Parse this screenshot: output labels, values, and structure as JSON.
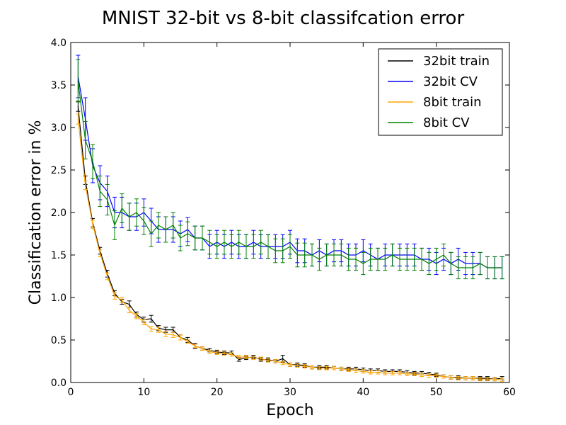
{
  "chart_data": {
    "type": "line",
    "title": "MNIST 32-bit vs 8-bit classifcation error",
    "xlabel": "Epoch",
    "ylabel": "Classification error in %",
    "xlim": [
      0,
      60
    ],
    "ylim": [
      0,
      4.0
    ],
    "x_ticks": [
      "0",
      "10",
      "20",
      "30",
      "40",
      "50",
      "60"
    ],
    "y_ticks": [
      "0.0",
      "0.5",
      "1.0",
      "1.5",
      "2.0",
      "2.5",
      "3.0",
      "3.5",
      "4.0"
    ],
    "grid": false,
    "legend_position": "top-right",
    "x": [
      1,
      2,
      3,
      4,
      5,
      6,
      7,
      8,
      9,
      10,
      11,
      12,
      13,
      14,
      15,
      16,
      17,
      18,
      19,
      20,
      21,
      22,
      23,
      24,
      25,
      26,
      27,
      28,
      29,
      30,
      31,
      32,
      33,
      34,
      35,
      36,
      37,
      38,
      39,
      40,
      41,
      42,
      43,
      44,
      45,
      46,
      47,
      48,
      49,
      50,
      51,
      52,
      53,
      54,
      55,
      56,
      57,
      58,
      59
    ],
    "series": [
      {
        "name": "32bit train",
        "color": "#000000",
        "values": [
          3.25,
          2.38,
          1.88,
          1.55,
          1.28,
          1.05,
          0.95,
          0.92,
          0.8,
          0.74,
          0.75,
          0.64,
          0.62,
          0.62,
          0.53,
          0.5,
          0.43,
          0.4,
          0.38,
          0.36,
          0.35,
          0.35,
          0.27,
          0.29,
          0.3,
          0.27,
          0.27,
          0.25,
          0.28,
          0.21,
          0.21,
          0.2,
          0.18,
          0.18,
          0.18,
          0.17,
          0.16,
          0.16,
          0.16,
          0.15,
          0.14,
          0.14,
          0.13,
          0.13,
          0.13,
          0.12,
          0.11,
          0.11,
          0.1,
          0.09,
          0.07,
          0.06,
          0.06,
          0.05,
          0.05,
          0.05,
          0.05,
          0.04,
          0.05
        ],
        "errors": [
          0.06,
          0.05,
          0.05,
          0.04,
          0.04,
          0.03,
          0.03,
          0.04,
          0.03,
          0.03,
          0.04,
          0.03,
          0.03,
          0.03,
          0.03,
          0.03,
          0.03,
          0.02,
          0.02,
          0.02,
          0.02,
          0.02,
          0.02,
          0.02,
          0.02,
          0.02,
          0.02,
          0.02,
          0.04,
          0.02,
          0.02,
          0.02,
          0.02,
          0.02,
          0.02,
          0.02,
          0.02,
          0.02,
          0.02,
          0.02,
          0.02,
          0.02,
          0.02,
          0.02,
          0.02,
          0.02,
          0.02,
          0.02,
          0.02,
          0.02,
          0.02,
          0.02,
          0.02,
          0.02,
          0.02,
          0.02,
          0.02,
          0.02,
          0.02
        ]
      },
      {
        "name": "32bit CV",
        "color": "#0000ff",
        "values": [
          3.6,
          3.1,
          2.55,
          2.35,
          2.25,
          2.0,
          2.0,
          1.95,
          1.95,
          2.0,
          1.9,
          1.8,
          1.8,
          1.8,
          1.75,
          1.8,
          1.7,
          1.7,
          1.6,
          1.65,
          1.6,
          1.65,
          1.6,
          1.6,
          1.65,
          1.6,
          1.6,
          1.6,
          1.6,
          1.65,
          1.55,
          1.55,
          1.5,
          1.55,
          1.5,
          1.55,
          1.55,
          1.5,
          1.5,
          1.55,
          1.5,
          1.45,
          1.5,
          1.5,
          1.5,
          1.5,
          1.5,
          1.45,
          1.45,
          1.4,
          1.45,
          1.4,
          1.45,
          1.4,
          1.4,
          1.4,
          1.35,
          1.35,
          1.35
        ],
        "errors": [
          0.25,
          0.25,
          0.2,
          0.2,
          0.18,
          0.18,
          0.18,
          0.16,
          0.16,
          0.16,
          0.15,
          0.15,
          0.15,
          0.15,
          0.15,
          0.14,
          0.14,
          0.14,
          0.14,
          0.14,
          0.14,
          0.14,
          0.14,
          0.14,
          0.14,
          0.14,
          0.14,
          0.14,
          0.14,
          0.14,
          0.14,
          0.14,
          0.13,
          0.13,
          0.13,
          0.13,
          0.13,
          0.13,
          0.13,
          0.13,
          0.13,
          0.13,
          0.13,
          0.13,
          0.13,
          0.13,
          0.13,
          0.13,
          0.13,
          0.13,
          0.13,
          0.13,
          0.13,
          0.13,
          0.13,
          0.13,
          0.13,
          0.13,
          0.13
        ]
      },
      {
        "name": "8bit train",
        "color": "#ffa500",
        "values": [
          3.1,
          2.32,
          1.86,
          1.52,
          1.25,
          1.02,
          0.97,
          0.85,
          0.78,
          0.71,
          0.63,
          0.62,
          0.57,
          0.56,
          0.53,
          0.48,
          0.43,
          0.4,
          0.36,
          0.35,
          0.34,
          0.33,
          0.3,
          0.3,
          0.29,
          0.28,
          0.26,
          0.25,
          0.23,
          0.21,
          0.2,
          0.19,
          0.18,
          0.17,
          0.17,
          0.17,
          0.16,
          0.15,
          0.14,
          0.13,
          0.12,
          0.12,
          0.11,
          0.11,
          0.11,
          0.1,
          0.1,
          0.09,
          0.08,
          0.08,
          0.07,
          0.06,
          0.05,
          0.05,
          0.05,
          0.04,
          0.04,
          0.04,
          0.03
        ],
        "errors": [
          0.06,
          0.05,
          0.05,
          0.04,
          0.04,
          0.04,
          0.03,
          0.03,
          0.03,
          0.03,
          0.03,
          0.03,
          0.03,
          0.03,
          0.03,
          0.02,
          0.02,
          0.02,
          0.02,
          0.02,
          0.02,
          0.02,
          0.02,
          0.02,
          0.02,
          0.02,
          0.02,
          0.02,
          0.02,
          0.02,
          0.02,
          0.02,
          0.02,
          0.02,
          0.02,
          0.02,
          0.02,
          0.02,
          0.02,
          0.02,
          0.02,
          0.02,
          0.02,
          0.02,
          0.02,
          0.02,
          0.02,
          0.02,
          0.02,
          0.02,
          0.02,
          0.02,
          0.02,
          0.02,
          0.02,
          0.02,
          0.02,
          0.02,
          0.02
        ]
      },
      {
        "name": "8bit CV",
        "color": "#008000",
        "values": [
          3.55,
          2.85,
          2.6,
          2.25,
          2.15,
          1.85,
          2.05,
          1.95,
          2.0,
          1.9,
          1.75,
          1.85,
          1.8,
          1.85,
          1.7,
          1.75,
          1.7,
          1.7,
          1.65,
          1.6,
          1.65,
          1.6,
          1.65,
          1.6,
          1.6,
          1.65,
          1.6,
          1.55,
          1.55,
          1.6,
          1.5,
          1.5,
          1.5,
          1.45,
          1.5,
          1.5,
          1.5,
          1.45,
          1.45,
          1.4,
          1.45,
          1.45,
          1.45,
          1.5,
          1.45,
          1.45,
          1.45,
          1.45,
          1.4,
          1.45,
          1.5,
          1.4,
          1.35,
          1.35,
          1.35,
          1.4,
          1.35,
          1.35,
          1.35
        ],
        "errors": [
          0.25,
          0.22,
          0.2,
          0.18,
          0.18,
          0.17,
          0.17,
          0.16,
          0.16,
          0.16,
          0.15,
          0.15,
          0.15,
          0.15,
          0.15,
          0.14,
          0.14,
          0.14,
          0.14,
          0.14,
          0.14,
          0.14,
          0.14,
          0.14,
          0.14,
          0.14,
          0.14,
          0.14,
          0.14,
          0.14,
          0.14,
          0.14,
          0.13,
          0.13,
          0.13,
          0.13,
          0.13,
          0.13,
          0.13,
          0.13,
          0.13,
          0.13,
          0.13,
          0.13,
          0.13,
          0.13,
          0.13,
          0.13,
          0.13,
          0.13,
          0.13,
          0.13,
          0.13,
          0.13,
          0.13,
          0.13,
          0.13,
          0.13,
          0.13
        ]
      }
    ]
  }
}
